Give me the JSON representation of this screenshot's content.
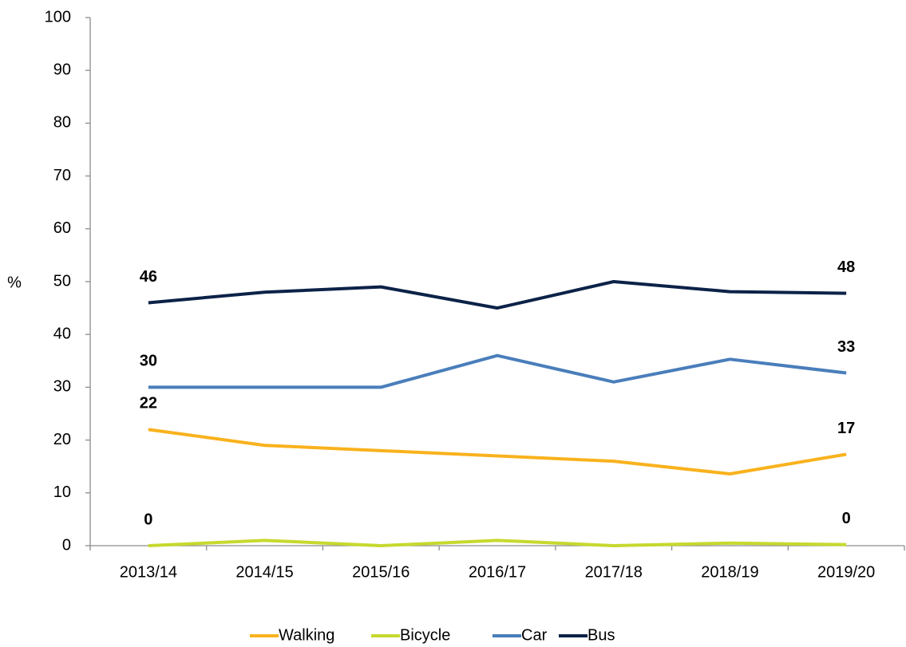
{
  "chart_data": {
    "type": "line",
    "y_label": "%",
    "categories": [
      "2013/14",
      "2014/15",
      "2015/16",
      "2016/17",
      "2017/18",
      "2018/19",
      "2019/20"
    ],
    "series": [
      {
        "name": "Walking",
        "color": "#f9b21d",
        "values": [
          22,
          19,
          18,
          17,
          16,
          13.6,
          17.3
        ],
        "value_labels": [
          "22",
          null,
          null,
          null,
          null,
          null,
          "17"
        ]
      },
      {
        "name": "Bicycle",
        "color": "#c6d92e",
        "values": [
          0,
          1,
          0,
          1,
          0,
          0.5,
          0.2
        ],
        "value_labels": [
          "0",
          null,
          null,
          null,
          null,
          null,
          "0"
        ]
      },
      {
        "name": "Car",
        "color": "#4a7ebb",
        "values": [
          30,
          30,
          30,
          36,
          31,
          35.3,
          32.7
        ],
        "value_labels": [
          "30",
          null,
          null,
          null,
          null,
          null,
          "33"
        ]
      },
      {
        "name": "Bus",
        "color": "#0c2248",
        "values": [
          46,
          48,
          49,
          45,
          50,
          48.1,
          47.8
        ],
        "value_labels": [
          "46",
          null,
          null,
          null,
          null,
          null,
          "48"
        ]
      }
    ],
    "ylim": [
      0,
      100
    ],
    "yticks": [
      0,
      10,
      20,
      30,
      40,
      50,
      60,
      70,
      80,
      90,
      100
    ],
    "legend": "bottom"
  }
}
